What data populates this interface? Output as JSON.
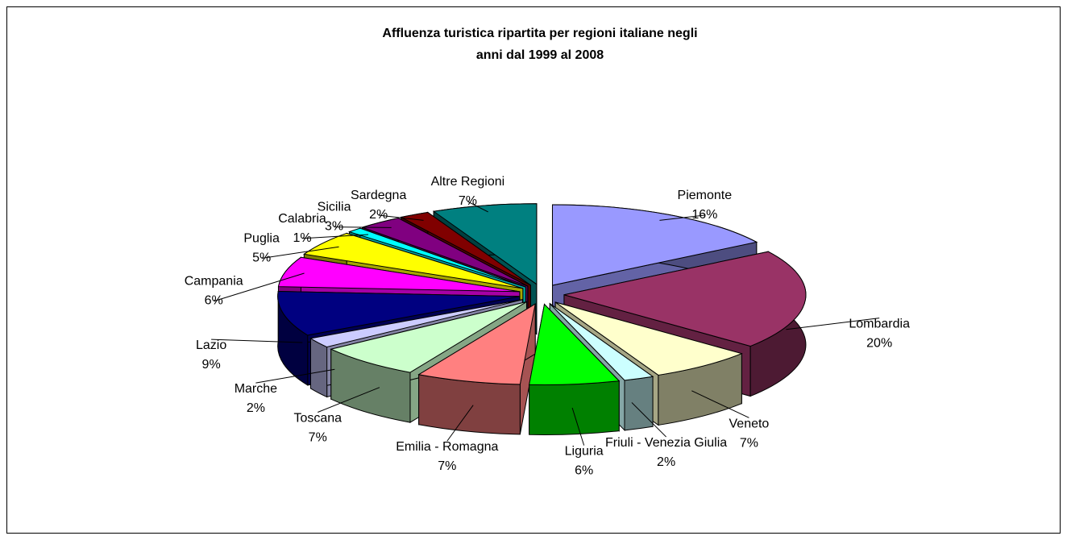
{
  "chart_data": {
    "type": "pie",
    "title": [
      "Affluenza turistica ripartita per regioni italiane negli",
      "anni dal 1999 al 2008"
    ],
    "categories": [
      "Piemonte",
      "Lombardia",
      "Veneto",
      "Friuli - Venezia Giulia",
      "Liguria",
      "Emilia - Romagna",
      "Toscana",
      "Marche",
      "Lazio",
      "Campania",
      "Puglia",
      "Calabria",
      "Sicilia",
      "Sardegna",
      "Altre Regioni"
    ],
    "values": [
      16,
      20,
      7,
      2,
      6,
      7,
      7,
      2,
      9,
      6,
      5,
      1,
      3,
      2,
      7
    ],
    "value_labels": [
      "16%",
      "20%",
      "7%",
      "2%",
      "6%",
      "7%",
      "7%",
      "2%",
      "9%",
      "6%",
      "5%",
      "1%",
      "3%",
      "2%",
      "7%"
    ],
    "colors": [
      "#9999ff",
      "#993366",
      "#ffffcc",
      "#ccffff",
      "#00ff00",
      "#ff8080",
      "#ccffcc",
      "#ccccff",
      "#000080",
      "#ff00ff",
      "#ffff00",
      "#00ffff",
      "#800080",
      "#800000",
      "#008080"
    ]
  }
}
